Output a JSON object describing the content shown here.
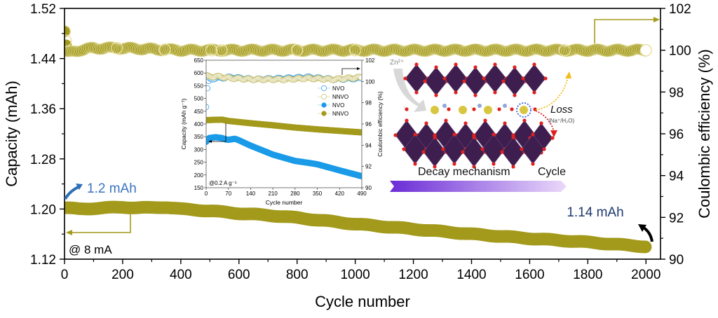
{
  "chart_data": [
    {
      "type": "scatter",
      "name": "main",
      "xlabel": "Cycle number",
      "ylabel": "Capacity (mAh)",
      "y2label": "Coulombic efficiency (%)",
      "xlim": [
        0,
        2050
      ],
      "ylim": [
        1.12,
        1.52
      ],
      "y2lim": [
        90,
        102
      ],
      "xticks": [
        0,
        200,
        400,
        600,
        800,
        1000,
        1200,
        1400,
        1600,
        1800,
        2000
      ],
      "yticks": [
        1.12,
        1.2,
        1.28,
        1.36,
        1.44,
        1.52
      ],
      "ytick_labels": [
        "1.12",
        "1.20",
        "1.28",
        "1.36",
        "1.44",
        "1.52"
      ],
      "y2ticks": [
        90,
        92,
        94,
        96,
        98,
        100,
        102
      ],
      "series": [
        {
          "name": "Capacity",
          "axis": "left",
          "marker": "filled-circle",
          "color": "#a39a1c",
          "x": [
            0,
            50,
            100,
            150,
            200,
            250,
            300,
            350,
            400,
            500,
            600,
            700,
            800,
            900,
            1000,
            1200,
            1400,
            1600,
            1800,
            2000
          ],
          "y": [
            1.202,
            1.2,
            1.201,
            1.202,
            1.203,
            1.202,
            1.202,
            1.203,
            1.2,
            1.197,
            1.193,
            1.19,
            1.186,
            1.181,
            1.176,
            1.168,
            1.16,
            1.153,
            1.147,
            1.14
          ]
        },
        {
          "name": "Coulombic efficiency",
          "axis": "right",
          "marker": "open-circle",
          "color": "#a39a1c",
          "x": [
            1,
            5,
            10,
            20,
            50,
            100,
            200,
            400,
            600,
            800,
            1000,
            1200,
            1400,
            1600,
            1800,
            2000
          ],
          "y": [
            100.9,
            100.3,
            99.9,
            99.9,
            100.0,
            100.1,
            100.1,
            100.0,
            100.0,
            100.0,
            100.0,
            100.0,
            100.0,
            100.0,
            100.0,
            100.0
          ]
        }
      ],
      "annotations": {
        "start_capacity": "1.2 mAh",
        "end_capacity": "1.14 mAh",
        "current": "@ 8 mA"
      }
    },
    {
      "type": "scatter",
      "name": "inset",
      "xlabel": "Cycle number",
      "ylabel": "Capacity (mAh g⁻¹)",
      "y2label": "Coulombic efficiency (%)",
      "xlim": [
        0,
        490
      ],
      "ylim": [
        150,
        650
      ],
      "y2lim": [
        90,
        102
      ],
      "xticks": [
        0,
        70,
        140,
        210,
        280,
        350,
        420,
        490
      ],
      "yticks": [
        150,
        200,
        250,
        300,
        350,
        400,
        450,
        500,
        550,
        600,
        650
      ],
      "y2ticks": [
        90,
        92,
        94,
        96,
        98,
        100,
        102
      ],
      "annotation": "@0.2 A g⁻¹",
      "series": [
        {
          "name": "NVO",
          "kind": "CE",
          "marker": "open-circle",
          "color": "#3aa0e6",
          "axis": "right",
          "x": [
            1,
            3,
            5,
            10,
            30,
            80,
            150,
            250,
            320,
            400,
            490
          ],
          "y": [
            97.6,
            99.0,
            99.6,
            100.2,
            100.3,
            100.4,
            100.2,
            100.3,
            100.4,
            100.2,
            100.3
          ]
        },
        {
          "name": "NNVO",
          "kind": "CE",
          "marker": "open-circle",
          "color": "#c8c070",
          "axis": "right",
          "x": [
            1,
            10,
            30,
            80,
            150,
            250,
            320,
            400,
            490
          ],
          "y": [
            100.6,
            100.4,
            100.5,
            100.3,
            100.2,
            100.2,
            100.3,
            100.2,
            100.4
          ]
        },
        {
          "name": "NVO",
          "kind": "capacity",
          "marker": "filled-circle",
          "color": "#1a9be8",
          "axis": "left",
          "x": [
            0,
            10,
            30,
            50,
            60,
            70,
            90,
            100,
            140,
            210,
            280,
            320,
            350,
            420,
            490
          ],
          "y": [
            330,
            345,
            348,
            345,
            340,
            338,
            342,
            338,
            315,
            280,
            255,
            248,
            242,
            218,
            195
          ]
        },
        {
          "name": "NNVO",
          "kind": "capacity",
          "marker": "filled-circle",
          "color": "#a39a1c",
          "axis": "left",
          "x": [
            0,
            20,
            50,
            70,
            140,
            210,
            280,
            350,
            420,
            490
          ],
          "y": [
            415,
            416,
            417,
            412,
            403,
            395,
            386,
            379,
            373,
            367
          ]
        }
      ]
    }
  ],
  "schematic": {
    "ion_label": "Zn²⁺",
    "loss_label": "Loss",
    "loss_detail": "(Na⁺/H₂O)",
    "mechanism_label": "Decay mechanism",
    "cycle_label": "Cycle",
    "colors": {
      "octahedra": "#3e1e4f",
      "oxygen": "#e02020",
      "sodium": "#d8c640",
      "arrow_start": "#6a2cd6",
      "arrow_end": "#e4d6f6"
    }
  },
  "colors": {
    "olive": "#a39a1c",
    "blue_label": "#3b73c0",
    "navy_label": "#1f3970",
    "inset_blue": "#1a9be8"
  }
}
